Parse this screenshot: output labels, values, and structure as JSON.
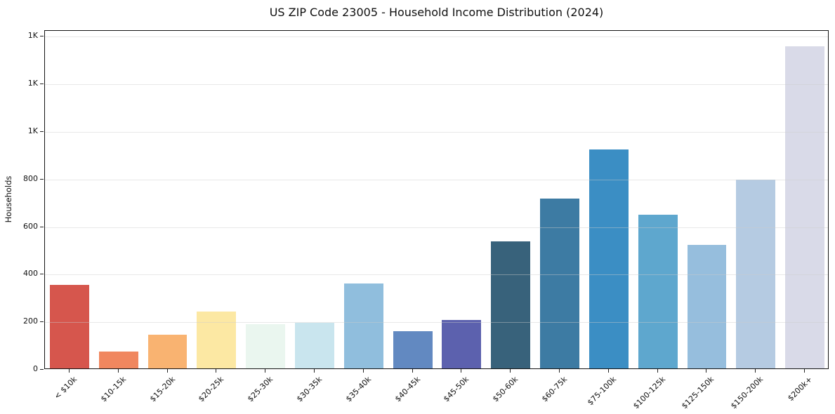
{
  "chart_data": {
    "type": "bar",
    "title": "US ZIP Code 23005 - Household Income Distribution (2024)",
    "xlabel": "",
    "ylabel": "Households",
    "categories": [
      "< $10k",
      "$10-15k",
      "$15-20k",
      "$20-25k",
      "$25-30k",
      "$30-35k",
      "$35-40k",
      "$40-45k",
      "$45-50k",
      "$50-60k",
      "$60-75k",
      "$75-100k",
      "$100-125k",
      "$125-150k",
      "$150-200k",
      "$200k+"
    ],
    "values": [
      350,
      72,
      143,
      240,
      185,
      193,
      358,
      155,
      205,
      535,
      715,
      922,
      647,
      520,
      795,
      1355
    ],
    "bar_colors": [
      "#d6564d",
      "#f0875f",
      "#f9b371",
      "#fce8a3",
      "#eaf6ef",
      "#c9e5ee",
      "#90bedd",
      "#6289c1",
      "#5c61ae",
      "#38627b",
      "#3d7ba3",
      "#3b8ec4",
      "#5ea7ce",
      "#96bedd",
      "#b5cbe2",
      "#d9dae8"
    ],
    "ylim": [
      0,
      1425
    ],
    "yticks": [
      {
        "value": 0,
        "label": "0"
      },
      {
        "value": 200,
        "label": "200"
      },
      {
        "value": 400,
        "label": "400"
      },
      {
        "value": 600,
        "label": "600"
      },
      {
        "value": 800,
        "label": "800"
      },
      {
        "value": 1000,
        "label": "1K"
      },
      {
        "value": 1200,
        "label": "1K"
      },
      {
        "value": 1400,
        "label": "1K"
      }
    ],
    "grid": "horizontal",
    "legend": "none",
    "bar_width_fraction": 0.8
  }
}
